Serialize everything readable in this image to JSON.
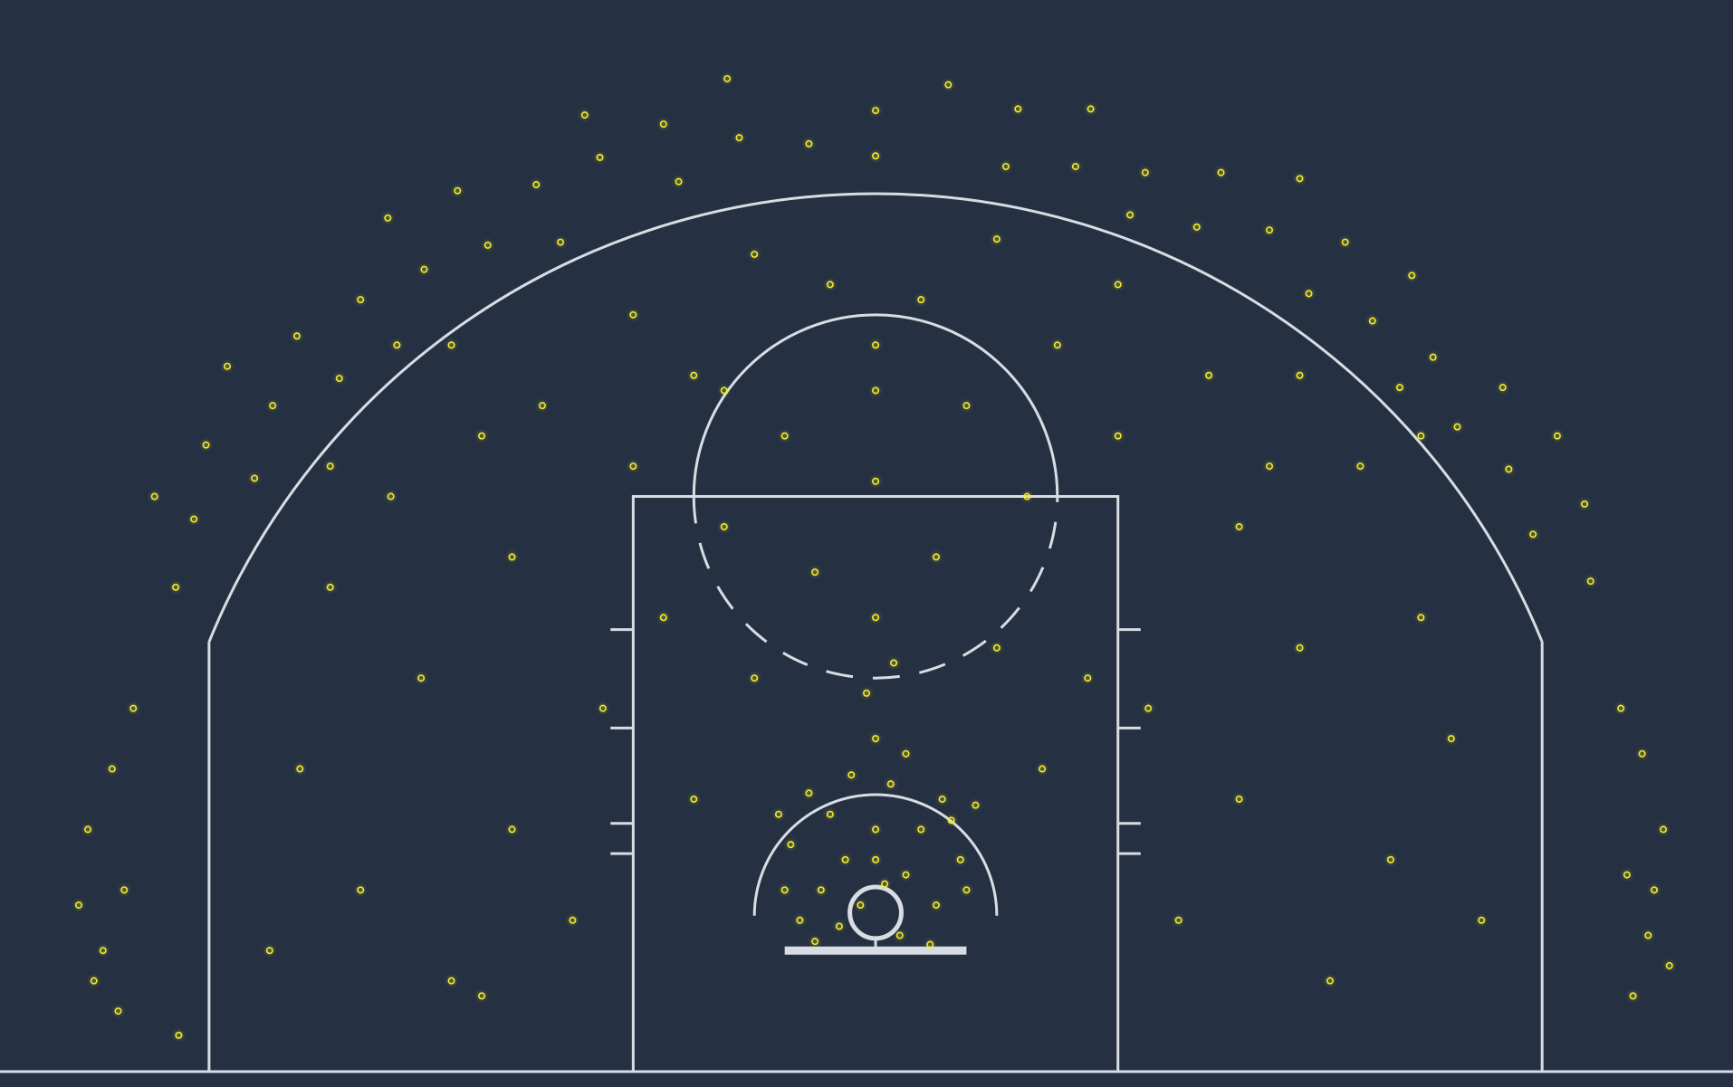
{
  "chart_data": {
    "type": "scatter",
    "xlim": [
      -28.9,
      28.3
    ],
    "ylim": [
      0,
      35.4
    ],
    "series": [
      {
        "color": "#f2ea2a",
        "x": [
          -2.5,
          -1.8,
          -1,
          0,
          1,
          2,
          2.8,
          -2.8,
          -1.5,
          0.5,
          1.5,
          2.2,
          -0.5,
          0.8,
          -2,
          1.8,
          -3,
          3,
          0,
          -0.8,
          1,
          -1.2,
          2.5,
          -2.2,
          0.3,
          -3.2,
          3.3,
          0,
          -0.3,
          0.6,
          -6,
          5.5,
          -4,
          4,
          -7,
          7,
          0,
          -2,
          2,
          -5,
          5,
          0,
          -3,
          3,
          -6,
          6,
          0,
          -1.5,
          1.5,
          0,
          -10,
          -12,
          -14,
          -17,
          -19,
          -15,
          -12,
          -16,
          -11,
          -8,
          -14,
          -18,
          -20,
          10,
          12,
          15,
          17,
          19,
          14,
          12,
          16,
          11,
          8,
          14,
          18,
          20,
          -9,
          9,
          -4,
          4,
          0,
          0,
          2.4,
          -2.2,
          4.3,
          4.7,
          -4.5,
          -4.9,
          6.6,
          7.1,
          -6.5,
          -7,
          8.9,
          8.4,
          -9.1,
          -9.6,
          10.6,
          11.4,
          -10.4,
          -11.2,
          13,
          14,
          -12.8,
          -13.8,
          14.3,
          15.5,
          -14.9,
          -16.1,
          16.4,
          17.7,
          -15.8,
          -17,
          18.4,
          17.3,
          -17.7,
          -19.1,
          19.2,
          20.7,
          -19.9,
          -21.4,
          20.9,
          22.5,
          -20.5,
          -22.1,
          21.7,
          23.4,
          -22.5,
          -23.8,
          23.6,
          -23.1,
          -25,
          -25.5,
          -24.8,
          -26,
          -25.2,
          -24.5,
          -26.3,
          -25.8,
          25,
          25.5,
          24.8,
          26,
          25.3,
          24.6,
          26.2,
          25.7,
          -18,
          -13,
          -8,
          8,
          13,
          18,
          -5,
          -13,
          -23
        ],
        "values": [
          5,
          6,
          7,
          8,
          6.5,
          5.5,
          7,
          7.5,
          8.5,
          9.5,
          8,
          9,
          5.5,
          4.5,
          4.3,
          4.2,
          6,
          6,
          7,
          9.8,
          10.5,
          4.8,
          8.3,
          9.2,
          6.2,
          8.5,
          8.8,
          11,
          12.5,
          13.5,
          9,
          10,
          13,
          14,
          15,
          13,
          15,
          16.5,
          17,
          18,
          19,
          19.5,
          21,
          22,
          23,
          24,
          24,
          26,
          25.5,
          22.5,
          5,
          8,
          3,
          6,
          10,
          13,
          17,
          19,
          22,
          25,
          24,
          16,
          4,
          5,
          9,
          3,
          7,
          11,
          14,
          18,
          20,
          23,
          26,
          23,
          15,
          5,
          12,
          12,
          27,
          27.5,
          30.25,
          31.75,
          32.6,
          30.65,
          29.9,
          31.8,
          30.85,
          32.8,
          29.9,
          31.8,
          29.4,
          31.3,
          29.7,
          28.3,
          30.2,
          31.6,
          27.9,
          29.7,
          27.4,
          29.3,
          27.8,
          29.5,
          27.3,
          29.1,
          25.7,
          27.4,
          26.5,
          28.2,
          24.8,
          26.3,
          24,
          25.5,
          23.6,
          22.6,
          22.9,
          24.3,
          21.3,
          22.6,
          22,
          23.3,
          19.9,
          21,
          19.6,
          20.7,
          17.75,
          18.75,
          18.25,
          19,
          16.2,
          16,
          2,
          4,
          6,
          8,
          10,
          12,
          5.5,
          3,
          2.5,
          4.5,
          6.5,
          8,
          10.5,
          12,
          3.5,
          6,
          20,
          21,
          20,
          21,
          20,
          21,
          22.5,
          2.5,
          1.2
        ]
      }
    ]
  }
}
